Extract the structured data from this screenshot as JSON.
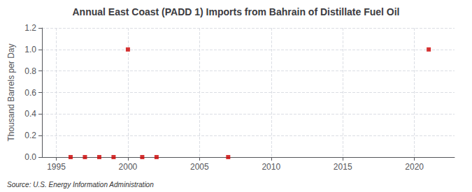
{
  "chart_data": {
    "type": "scatter",
    "title": "Annual East Coast (PADD 1) Imports from Bahrain of Distillate Fuel Oil",
    "ylabel": "Thousand Barrels per Day",
    "annotation": "Source: U.S. Energy Information Administration",
    "x": [
      1996,
      1997,
      1998,
      1999,
      2000,
      2001,
      2002,
      2007,
      2021
    ],
    "values": [
      0.0,
      0.0,
      0.0,
      0.0,
      1.0,
      0.0,
      0.0,
      0.0,
      1.0
    ],
    "color": "#cc0000",
    "marker": "square",
    "xlim": [
      1994,
      2022.8
    ],
    "xticks": [
      1995,
      2000,
      2005,
      2010,
      2015,
      2020
    ],
    "ylim": [
      0,
      1.2
    ],
    "yticks": [
      {
        "value": 0.0,
        "label": "0.0"
      },
      0.2,
      0.4,
      0.6,
      0.8,
      {
        "value": 1.0,
        "label": "1.0"
      },
      1.2
    ],
    "grid": true
  }
}
